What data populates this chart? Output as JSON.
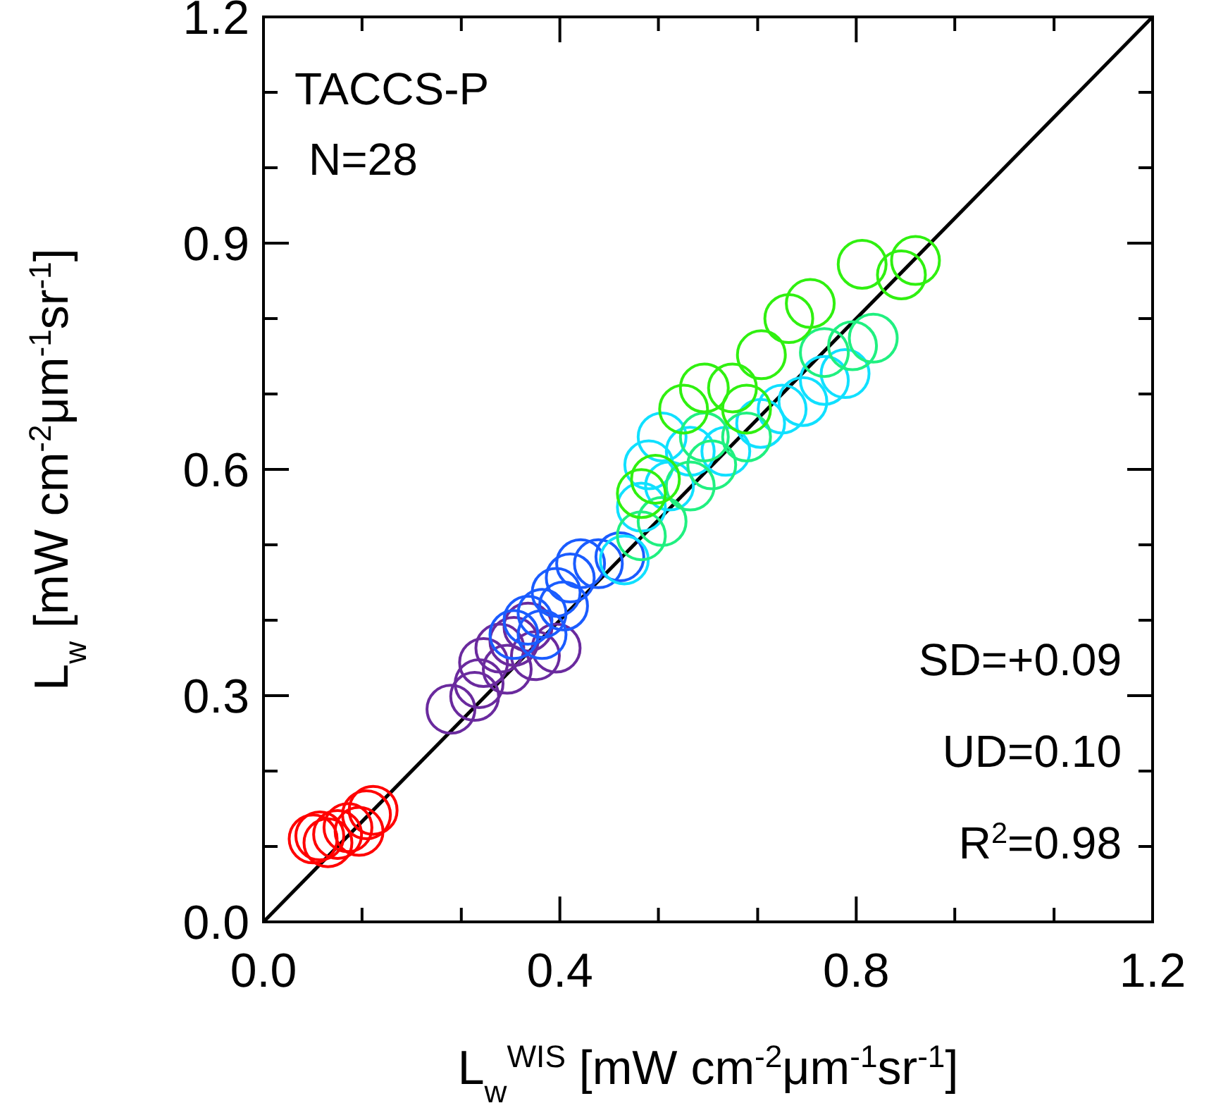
{
  "chart_data": {
    "type": "scatter",
    "xlabel": "L$_{w}$$^{WIS}$ [mW cm$^{-2}$μm$^{-1}$sr$^{-1}$]",
    "ylabel": "L$_{w}$ [mW cm$^{-2}$μm$^{-1}$sr$^{-1}$]",
    "annotations": [
      "TACCS-P",
      "N=28",
      "SD=+0.09",
      "UD=0.10",
      "R$^{2}$=0.98"
    ],
    "xlim": [
      0,
      1.2
    ],
    "ylim": [
      0,
      1.2
    ],
    "xticks": [
      {
        "value": 0,
        "label": "0.0"
      },
      {
        "value": 0.133,
        "label": null
      },
      {
        "value": 0.267,
        "label": null
      },
      {
        "value": 0.4,
        "label": "0.4"
      },
      {
        "value": 0.533,
        "label": null
      },
      {
        "value": 0.667,
        "label": null
      },
      {
        "value": 0.8,
        "label": "0.8"
      },
      {
        "value": 0.933,
        "label": null
      },
      {
        "value": 1.067,
        "label": null
      },
      {
        "value": 1.2,
        "label": "1.2"
      }
    ],
    "yticks": [
      {
        "value": 0,
        "label": "0.0"
      },
      {
        "value": 0.1,
        "label": null
      },
      {
        "value": 0.2,
        "label": null
      },
      {
        "value": 0.3,
        "label": "0.3"
      },
      {
        "value": 0.4,
        "label": null
      },
      {
        "value": 0.5,
        "label": null
      },
      {
        "value": 0.6,
        "label": "0.6"
      },
      {
        "value": 0.7,
        "label": null
      },
      {
        "value": 0.8,
        "label": null
      },
      {
        "value": 0.9,
        "label": "0.9"
      },
      {
        "value": 1.0,
        "label": null
      },
      {
        "value": 1.1,
        "label": null
      },
      {
        "value": 1.2,
        "label": "1.2"
      }
    ],
    "marker": "circle",
    "series": [
      {
        "type": "line",
        "marker": "none",
        "color": "#000000",
        "x": [
          0,
          1.2
        ],
        "values": [
          0,
          1.2
        ]
      },
      {
        "color": "#ff0000",
        "x": [
          0.076,
          0.087,
          0.114,
          0.139,
          0.129,
          0.067,
          0.1,
          0.148
        ],
        "values": [
          0.114,
          0.105,
          0.125,
          0.142,
          0.12,
          0.11,
          0.116,
          0.148
        ]
      },
      {
        "color": "#6a2a9e",
        "x": [
          0.253,
          0.285,
          0.297,
          0.319,
          0.338,
          0.357,
          0.395,
          0.367,
          0.291,
          0.329
        ],
        "values": [
          0.282,
          0.299,
          0.344,
          0.363,
          0.372,
          0.391,
          0.363,
          0.353,
          0.316,
          0.335
        ]
      },
      {
        "color": "#1a5cff",
        "x": [
          0.357,
          0.338,
          0.376,
          0.395,
          0.414,
          0.428,
          0.452,
          0.481,
          0.405,
          0.376
        ],
        "values": [
          0.4,
          0.381,
          0.409,
          0.437,
          0.456,
          0.475,
          0.475,
          0.484,
          0.419,
          0.381
        ]
      },
      {
        "color": "#10e0ff",
        "x": [
          0.487,
          0.51,
          0.52,
          0.548,
          0.576,
          0.624,
          0.7,
          0.728,
          0.757,
          0.785,
          0.671,
          0.538
        ],
        "values": [
          0.48,
          0.55,
          0.606,
          0.578,
          0.624,
          0.624,
          0.68,
          0.69,
          0.718,
          0.727,
          0.661,
          0.643
        ]
      },
      {
        "color": "#20f080",
        "x": [
          0.51,
          0.538,
          0.576,
          0.605,
          0.652,
          0.757,
          0.795,
          0.823,
          0.595
        ],
        "values": [
          0.512,
          0.531,
          0.578,
          0.606,
          0.643,
          0.755,
          0.764,
          0.774,
          0.643
        ]
      },
      {
        "color": "#30f010",
        "x": [
          0.51,
          0.529,
          0.567,
          0.595,
          0.633,
          0.672,
          0.709,
          0.738,
          0.808,
          0.861,
          0.88,
          0.652
        ],
        "values": [
          0.568,
          0.587,
          0.68,
          0.708,
          0.708,
          0.752,
          0.8,
          0.82,
          0.872,
          0.858,
          0.877,
          0.68
        ]
      }
    ]
  }
}
